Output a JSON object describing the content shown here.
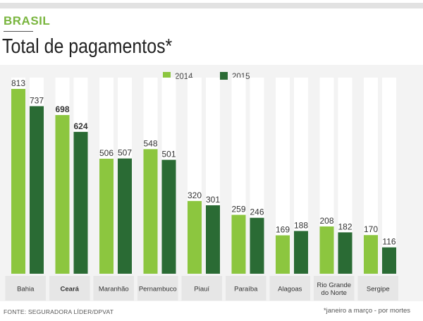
{
  "header": {
    "section": "BRASIL",
    "title": "Total de pagamentos*"
  },
  "footer": {
    "source": "FONTE: SEGURADORA LÍDER/DPVAT",
    "note": "*janeiro a março - por mortes"
  },
  "colors": {
    "series_2014": "#8cc63f",
    "series_2015": "#2a6b34",
    "track": "#ffffff",
    "label_box": "#e6e6e6"
  },
  "chart_data": {
    "type": "bar",
    "title": "Total de pagamentos*",
    "categories": [
      "Bahia",
      "Ceará",
      "Maranhão",
      "Pernambuco",
      "Piauí",
      "Paraíba",
      "Alagoas",
      "Rio Grande do Norte",
      "Sergipe"
    ],
    "category_lines": [
      [
        "Bahia"
      ],
      [
        "Ceará"
      ],
      [
        "Maranhão"
      ],
      [
        "Pernambuco"
      ],
      [
        "Piauí"
      ],
      [
        "Paraíba"
      ],
      [
        "Alagoas"
      ],
      [
        "Rio Grande",
        "do Norte"
      ],
      [
        "Sergipe"
      ]
    ],
    "series": [
      {
        "name": "2014",
        "values": [
          813,
          698,
          506,
          548,
          320,
          259,
          169,
          208,
          170
        ]
      },
      {
        "name": "2015",
        "values": [
          737,
          624,
          507,
          501,
          301,
          246,
          188,
          182,
          116
        ]
      }
    ],
    "ylim": [
      0,
      813
    ],
    "legend": "top-center",
    "grid": false
  }
}
